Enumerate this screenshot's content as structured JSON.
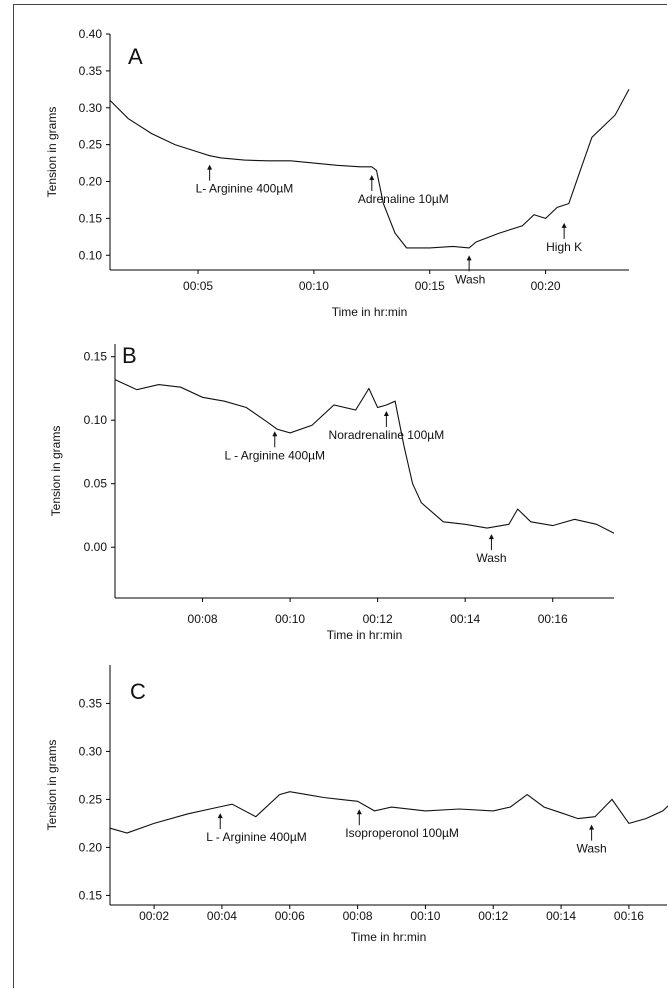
{
  "chart_data": [
    {
      "type": "line",
      "panel_label": "A",
      "xlabel": "Time in hr:min",
      "ylabel": "Tension in grams",
      "xlim": [
        1.2,
        23.6
      ],
      "ylim": [
        0.08,
        0.4
      ],
      "x_ticks": [
        5,
        10,
        15,
        20
      ],
      "x_tick_labels": [
        "00:05",
        "00:10",
        "00:15",
        "00:20"
      ],
      "y_ticks": [
        0.1,
        0.15,
        0.2,
        0.25,
        0.3,
        0.35,
        0.4
      ],
      "y_tick_labels": [
        "0.10",
        "0.15",
        "0.20",
        "0.25",
        "0.30",
        "0.35",
        "0.40"
      ],
      "series": [
        {
          "x": [
            1.2,
            2,
            3,
            4,
            5,
            5.5,
            6,
            7,
            8,
            9,
            10,
            11,
            12,
            12.5,
            12.7,
            13,
            13.5,
            14,
            15,
            16,
            16.7,
            17,
            18,
            19,
            19.5,
            20,
            20.5,
            21,
            21.5,
            22,
            23,
            23.6
          ],
          "y": [
            0.31,
            0.285,
            0.265,
            0.25,
            0.24,
            0.235,
            0.232,
            0.229,
            0.228,
            0.228,
            0.225,
            0.222,
            0.22,
            0.22,
            0.215,
            0.17,
            0.13,
            0.11,
            0.11,
            0.112,
            0.11,
            0.118,
            0.13,
            0.14,
            0.155,
            0.15,
            0.165,
            0.17,
            0.215,
            0.26,
            0.29,
            0.325
          ]
        }
      ],
      "annotations": [
        {
          "text": "L- Arginine 400µM",
          "x": 5.5,
          "y": 0.231,
          "label_align": "start"
        },
        {
          "text": "Adrenaline 10µM",
          "x": 12.5,
          "y": 0.217,
          "label_align": "start"
        },
        {
          "text": "Wash",
          "x": 16.7,
          "y": 0.108,
          "label_align": "start"
        },
        {
          "text": "High K",
          "x": 20.8,
          "y": 0.152,
          "label_align": "middle"
        }
      ]
    },
    {
      "type": "line",
      "panel_label": "B",
      "xlabel": "Time in hr:min",
      "ylabel": "Tension in grams",
      "xlim": [
        6.0,
        17.4
      ],
      "ylim": [
        -0.04,
        0.16
      ],
      "x_ticks": [
        8,
        10,
        12,
        14,
        16
      ],
      "x_tick_labels": [
        "00:08",
        "00:10",
        "00:12",
        "00:14",
        "00:16"
      ],
      "y_ticks": [
        0.0,
        0.05,
        0.1,
        0.15
      ],
      "y_tick_labels": [
        "0.00",
        "0.05",
        "0.10",
        "0.15"
      ],
      "series": [
        {
          "x": [
            6.0,
            6.5,
            7,
            7.5,
            8,
            8.5,
            9,
            9.5,
            9.7,
            10,
            10.5,
            11,
            11.5,
            11.8,
            12,
            12.2,
            12.4,
            12.6,
            12.8,
            13,
            13.5,
            14,
            14.5,
            15,
            15.2,
            15.5,
            16,
            16.5,
            17,
            17.4
          ],
          "y": [
            0.132,
            0.124,
            0.128,
            0.126,
            0.118,
            0.115,
            0.11,
            0.098,
            0.093,
            0.09,
            0.096,
            0.112,
            0.108,
            0.125,
            0.11,
            0.112,
            0.115,
            0.08,
            0.05,
            0.035,
            0.02,
            0.018,
            0.015,
            0.018,
            0.03,
            0.02,
            0.017,
            0.022,
            0.018,
            0.011
          ]
        }
      ],
      "annotations": [
        {
          "text": "L - Arginine 400µM",
          "x": 9.65,
          "y": 0.096,
          "label_align": "middle"
        },
        {
          "text": "Noradrenaline 100µM",
          "x": 12.2,
          "y": 0.112,
          "label_align": "middle"
        },
        {
          "text": "Wash",
          "x": 14.6,
          "y": 0.015,
          "label_align": "middle"
        }
      ]
    },
    {
      "type": "line",
      "panel_label": "C",
      "xlabel": "Time in hr:min",
      "ylabel": "Tension in grams",
      "xlim": [
        0.7,
        17.3
      ],
      "ylim": [
        0.14,
        0.39
      ],
      "x_ticks": [
        2,
        4,
        6,
        8,
        10,
        12,
        14,
        16
      ],
      "x_tick_labels": [
        "00:02",
        "00:04",
        "00:06",
        "00:08",
        "00:10",
        "00:12",
        "00:14",
        "00:16"
      ],
      "y_ticks": [
        0.15,
        0.2,
        0.25,
        0.3,
        0.35
      ],
      "y_tick_labels": [
        "0.15",
        "0.20",
        "0.25",
        "0.30",
        "0.35"
      ],
      "series": [
        {
          "x": [
            0.7,
            1.2,
            2,
            3,
            3.9,
            4.3,
            5,
            5.7,
            6,
            6.5,
            7,
            7.5,
            8,
            8.5,
            9,
            10,
            11,
            12,
            12.5,
            13,
            13.5,
            14,
            14.5,
            15,
            15.5,
            16,
            16.5,
            17,
            17.3
          ],
          "y": [
            0.22,
            0.215,
            0.225,
            0.235,
            0.242,
            0.245,
            0.232,
            0.255,
            0.258,
            0.255,
            0.252,
            0.25,
            0.248,
            0.238,
            0.242,
            0.238,
            0.24,
            0.238,
            0.242,
            0.255,
            0.242,
            0.236,
            0.23,
            0.232,
            0.25,
            0.225,
            0.23,
            0.238,
            0.248
          ]
        }
      ],
      "annotations": [
        {
          "text": "L - Arginine 400µM",
          "x": 3.95,
          "y": 0.242,
          "label_align": "start"
        },
        {
          "text": "Isoproperonol 100µM",
          "x": 8.05,
          "y": 0.246,
          "label_align": "start"
        },
        {
          "text": "Wash",
          "x": 14.9,
          "y": 0.23,
          "label_align": "middle"
        }
      ]
    }
  ]
}
